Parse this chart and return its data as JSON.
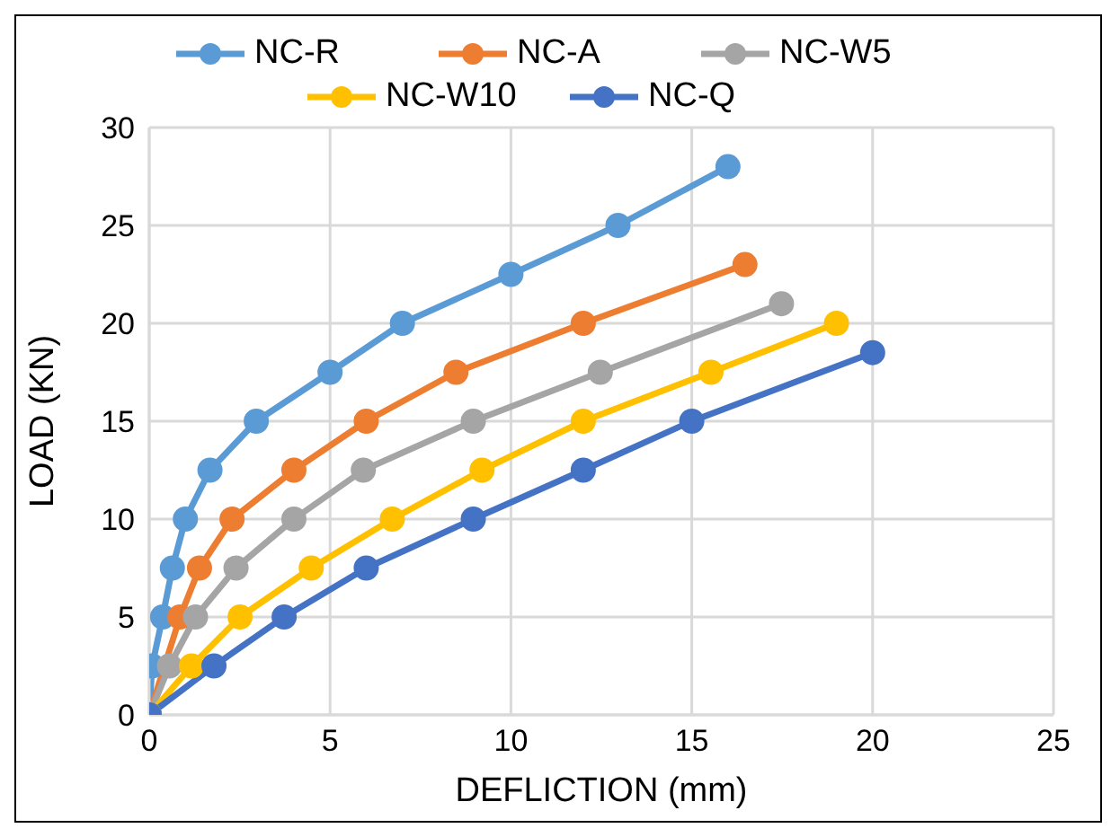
{
  "chart_data": {
    "type": "line",
    "xlabel": "DEFLICTION (mm)",
    "ylabel": "LOAD (KN)",
    "xlim": [
      0,
      25
    ],
    "xticks": [
      0,
      5,
      10,
      15,
      20,
      25
    ],
    "ylim": [
      0,
      30
    ],
    "yticks": [
      0,
      5,
      10,
      15,
      20,
      25,
      30
    ],
    "grid": true,
    "legend": "top",
    "marker": "circle",
    "line_style": "solid",
    "series": [
      {
        "name": "NC-R",
        "color": "#5b9bd5",
        "x": [
          0,
          0.08,
          0.37,
          0.64,
          1.0,
          1.68,
          2.96,
          5.0,
          7.0,
          10.0,
          12.96,
          16.0
        ],
        "values": [
          0,
          2.5,
          5,
          7.5,
          10,
          12.5,
          15,
          17.5,
          20,
          22.5,
          25,
          28
        ]
      },
      {
        "name": "NC-A",
        "color": "#ed7d31",
        "x": [
          0,
          0.4,
          0.85,
          1.39,
          2.29,
          4.0,
          6.0,
          8.48,
          12.0,
          16.47
        ],
        "values": [
          0,
          null,
          5,
          7.5,
          10,
          12.5,
          15,
          17.5,
          20,
          23
        ]
      },
      {
        "name": "NC-W5",
        "color": "#a5a5a5",
        "x": [
          0,
          0.56,
          1.28,
          2.4,
          4.0,
          5.92,
          8.96,
          12.47,
          17.48
        ],
        "values": [
          0,
          2.5,
          5,
          7.5,
          10,
          12.5,
          15,
          17.5,
          21
        ]
      },
      {
        "name": "NC-W10",
        "color": "#ffc000",
        "x": [
          0,
          1.17,
          2.51,
          4.48,
          6.72,
          9.2,
          12.0,
          15.53,
          19.0
        ],
        "values": [
          0,
          2.5,
          5,
          7.5,
          10,
          12.5,
          15,
          17.5,
          20
        ]
      },
      {
        "name": "NC-Q",
        "color": "#4472c4",
        "x": [
          0,
          1.79,
          3.73,
          6.0,
          8.96,
          12.0,
          15.0,
          20.0
        ],
        "values": [
          0,
          2.5,
          5,
          7.5,
          10,
          12.5,
          15,
          18.5
        ]
      }
    ]
  }
}
